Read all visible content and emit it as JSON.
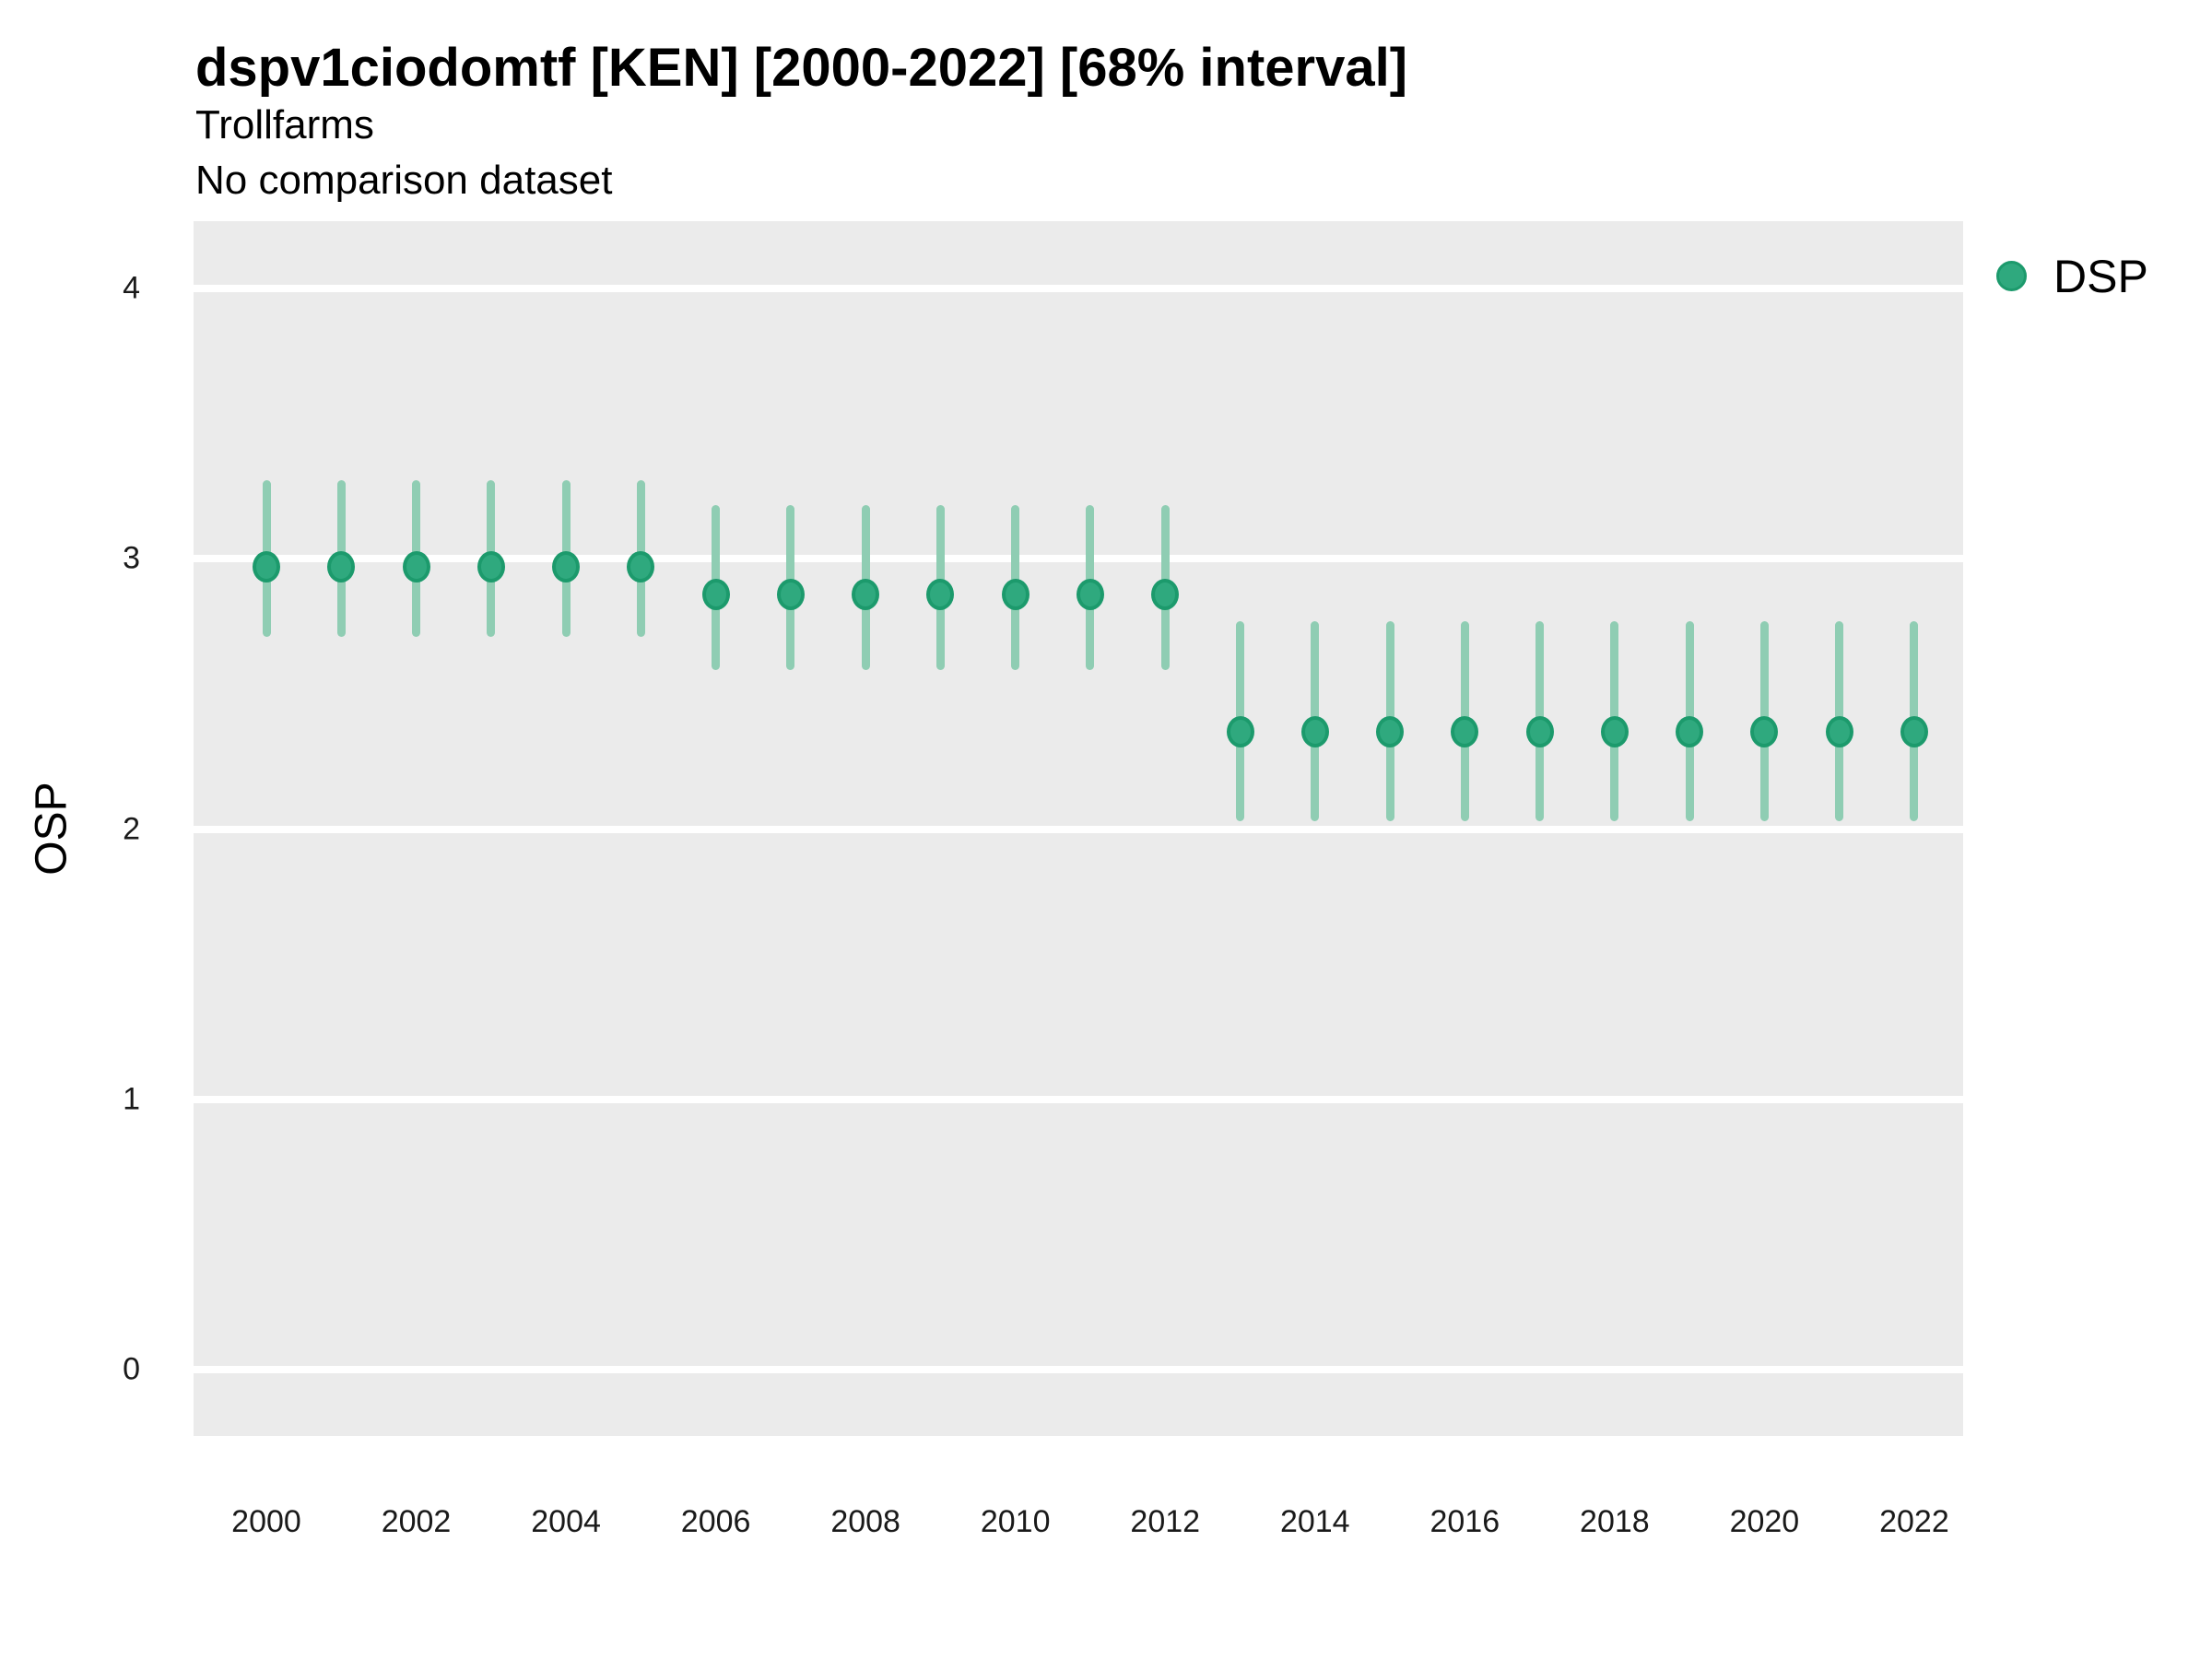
{
  "header": {
    "title": "dspv1ciodomtf [KEN] [2000-2022] [68% interval]",
    "subtitle": "Trollfarms",
    "note": "No comparison dataset"
  },
  "legend": {
    "position": "right-top",
    "items": [
      {
        "label": "DSP",
        "marker": "circle",
        "color": "#2FA97E",
        "border_color": "#1C9A6C"
      }
    ]
  },
  "axes": {
    "y_label": "OSP",
    "y_ticks": [
      {
        "label": "4",
        "value": 4
      },
      {
        "label": "3",
        "value": 3
      },
      {
        "label": "2",
        "value": 2
      },
      {
        "label": "1",
        "value": 1
      },
      {
        "label": "0",
        "value": 0
      }
    ],
    "x_ticks": [
      {
        "label": "2000",
        "value": 2000
      },
      {
        "label": "2002",
        "value": 2002
      },
      {
        "label": "2004",
        "value": 2004
      },
      {
        "label": "2006",
        "value": 2006
      },
      {
        "label": "2008",
        "value": 2008
      },
      {
        "label": "2010",
        "value": 2010
      },
      {
        "label": "2012",
        "value": 2012
      },
      {
        "label": "2014",
        "value": 2014
      },
      {
        "label": "2016",
        "value": 2016
      },
      {
        "label": "2018",
        "value": 2018
      },
      {
        "label": "2020",
        "value": 2020
      },
      {
        "label": "2022",
        "value": 2022
      }
    ]
  },
  "colors": {
    "point_fill": "#2FA97E",
    "point_border": "#1C9A6C",
    "interval_line": "#8FCDB3",
    "panel_background": "#EBEBEB",
    "gridline": "#FFFFFF",
    "text": "#000000"
  },
  "chart_data": {
    "type": "pointrange",
    "title": "dspv1ciodomtf [KEN] [2000-2022] [68% interval]",
    "subtitle": "Trollfarms",
    "note": "No comparison dataset",
    "interval": "68%",
    "xlabel": "",
    "ylabel": "OSP",
    "ylim": [
      -0.25,
      4.25
    ],
    "x_range": [
      2000,
      2022
    ],
    "grid": "major-horizontal-only",
    "legend_position": "right-top",
    "series": [
      {
        "name": "DSP",
        "points": [
          {
            "year": 2000,
            "value": 2.97,
            "lo": 2.71,
            "hi": 3.29
          },
          {
            "year": 2001,
            "value": 2.97,
            "lo": 2.71,
            "hi": 3.29
          },
          {
            "year": 2002,
            "value": 2.97,
            "lo": 2.71,
            "hi": 3.29
          },
          {
            "year": 2003,
            "value": 2.97,
            "lo": 2.71,
            "hi": 3.29
          },
          {
            "year": 2004,
            "value": 2.97,
            "lo": 2.71,
            "hi": 3.29
          },
          {
            "year": 2005,
            "value": 2.97,
            "lo": 2.71,
            "hi": 3.29
          },
          {
            "year": 2006,
            "value": 2.87,
            "lo": 2.59,
            "hi": 3.2
          },
          {
            "year": 2007,
            "value": 2.87,
            "lo": 2.59,
            "hi": 3.2
          },
          {
            "year": 2008,
            "value": 2.87,
            "lo": 2.59,
            "hi": 3.2
          },
          {
            "year": 2009,
            "value": 2.87,
            "lo": 2.59,
            "hi": 3.2
          },
          {
            "year": 2010,
            "value": 2.87,
            "lo": 2.59,
            "hi": 3.2
          },
          {
            "year": 2011,
            "value": 2.87,
            "lo": 2.59,
            "hi": 3.2
          },
          {
            "year": 2012,
            "value": 2.87,
            "lo": 2.59,
            "hi": 3.2
          },
          {
            "year": 2013,
            "value": 2.36,
            "lo": 2.03,
            "hi": 2.77
          },
          {
            "year": 2014,
            "value": 2.36,
            "lo": 2.03,
            "hi": 2.77
          },
          {
            "year": 2015,
            "value": 2.36,
            "lo": 2.03,
            "hi": 2.77
          },
          {
            "year": 2016,
            "value": 2.36,
            "lo": 2.03,
            "hi": 2.77
          },
          {
            "year": 2017,
            "value": 2.36,
            "lo": 2.03,
            "hi": 2.77
          },
          {
            "year": 2018,
            "value": 2.36,
            "lo": 2.03,
            "hi": 2.77
          },
          {
            "year": 2019,
            "value": 2.36,
            "lo": 2.03,
            "hi": 2.77
          },
          {
            "year": 2020,
            "value": 2.36,
            "lo": 2.03,
            "hi": 2.77
          },
          {
            "year": 2021,
            "value": 2.36,
            "lo": 2.03,
            "hi": 2.77
          },
          {
            "year": 2022,
            "value": 2.36,
            "lo": 2.03,
            "hi": 2.77
          }
        ]
      }
    ]
  }
}
